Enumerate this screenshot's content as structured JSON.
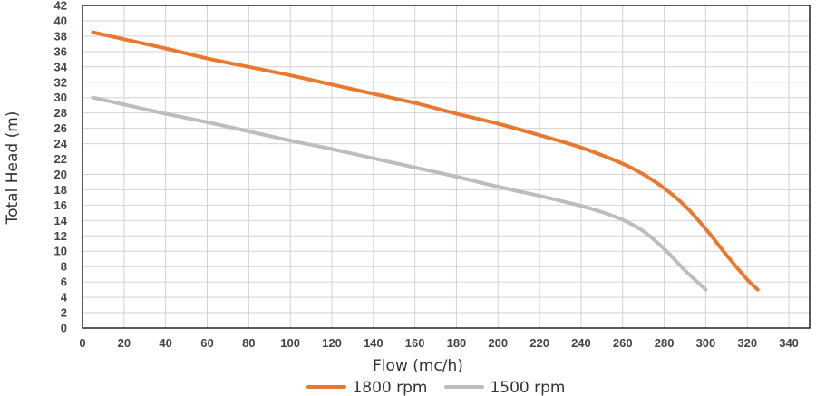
{
  "chart_data": {
    "type": "line",
    "title": "",
    "xlabel": "Flow (mc/h)",
    "ylabel": "Total Head (m)",
    "xlim": [
      0,
      350
    ],
    "ylim": [
      0,
      42
    ],
    "xticks": [
      0,
      20,
      40,
      60,
      80,
      100,
      120,
      140,
      160,
      180,
      200,
      220,
      240,
      260,
      280,
      300,
      320,
      340
    ],
    "yticks": [
      0,
      2,
      4,
      6,
      8,
      10,
      12,
      14,
      16,
      18,
      20,
      22,
      24,
      26,
      28,
      30,
      32,
      34,
      36,
      38,
      40,
      42
    ],
    "grid": true,
    "legend_position": "bottom-center",
    "series": [
      {
        "name": "1800 rpm",
        "color": "#E8792F",
        "x": [
          5,
          20,
          40,
          60,
          80,
          100,
          120,
          140,
          160,
          180,
          200,
          220,
          240,
          260,
          270,
          280,
          290,
          300,
          310,
          320,
          325
        ],
        "y": [
          38.5,
          37.6,
          36.4,
          35.1,
          34.0,
          32.9,
          31.7,
          30.5,
          29.3,
          27.9,
          26.6,
          25.1,
          23.5,
          21.4,
          20.0,
          18.2,
          15.9,
          12.9,
          9.5,
          6.3,
          5.0
        ]
      },
      {
        "name": "1500 rpm",
        "color": "#BDBDBD",
        "x": [
          5,
          20,
          40,
          60,
          80,
          100,
          120,
          140,
          160,
          180,
          200,
          220,
          240,
          250,
          260,
          270,
          280,
          290,
          300
        ],
        "y": [
          30.0,
          29.1,
          27.9,
          26.8,
          25.6,
          24.4,
          23.3,
          22.1,
          20.9,
          19.7,
          18.4,
          17.2,
          15.9,
          15.1,
          14.1,
          12.6,
          10.3,
          7.5,
          5.0
        ]
      }
    ]
  }
}
